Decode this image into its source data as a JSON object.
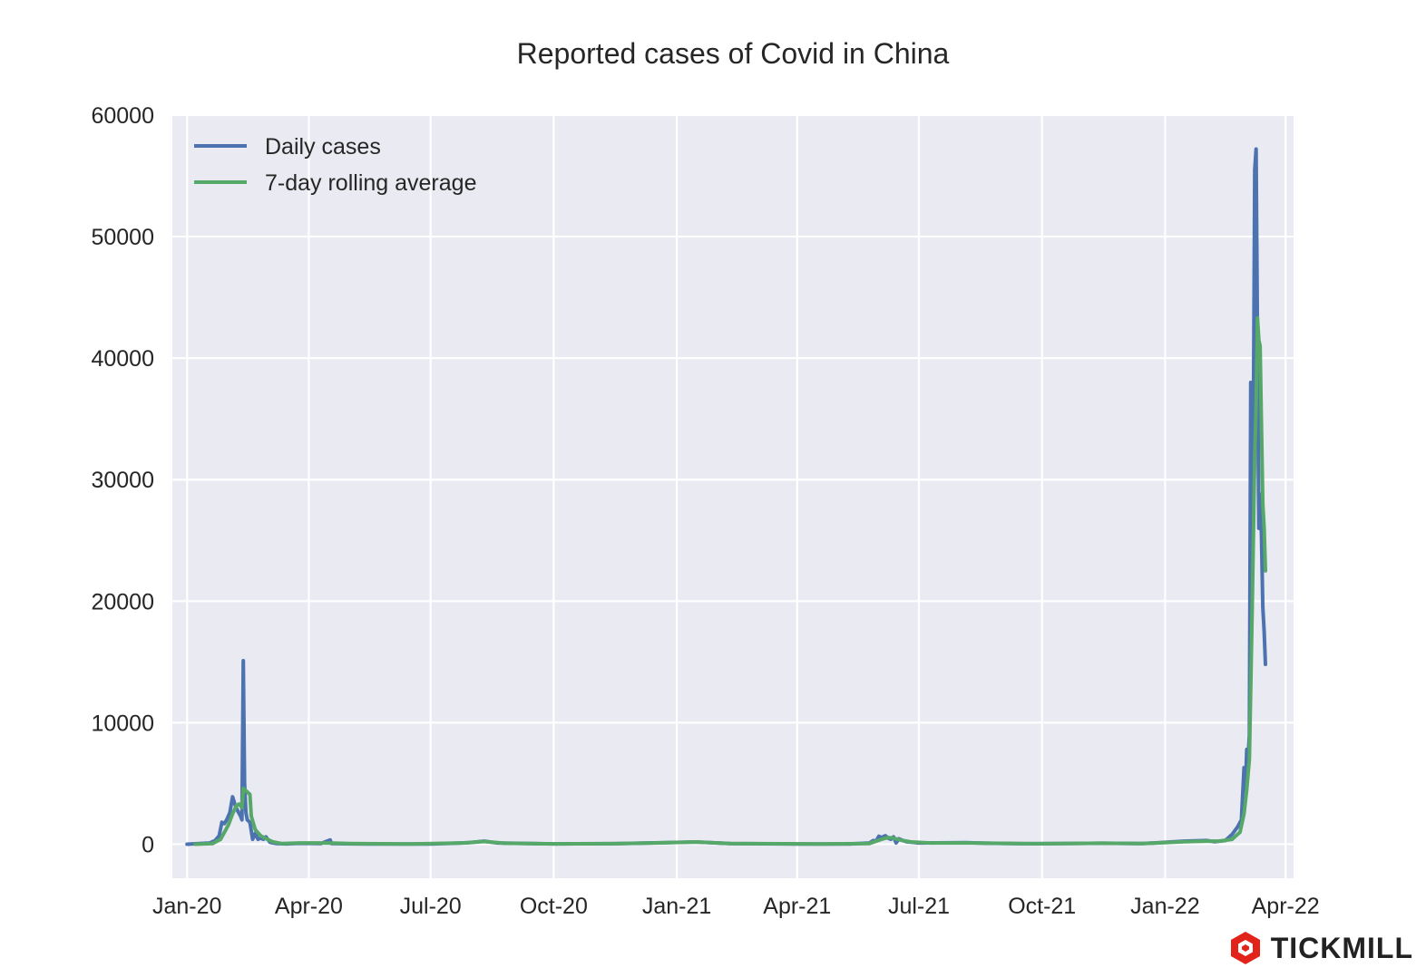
{
  "chart_data": {
    "type": "line",
    "title": "Reported cases of Covid in China",
    "xlabel": "",
    "ylabel": "",
    "x_range": [
      "2019-12-21",
      "2022-04-07"
    ],
    "ylim": [
      -2800,
      60000
    ],
    "grid": true,
    "legend_position": "top-left",
    "x_ticks": [
      {
        "date": "2020-01-01",
        "label": "Jan-20"
      },
      {
        "date": "2020-04-01",
        "label": "Apr-20"
      },
      {
        "date": "2020-07-01",
        "label": "Jul-20"
      },
      {
        "date": "2020-10-01",
        "label": "Oct-20"
      },
      {
        "date": "2021-01-01",
        "label": "Jan-21"
      },
      {
        "date": "2021-04-01",
        "label": "Apr-21"
      },
      {
        "date": "2021-07-01",
        "label": "Jul-21"
      },
      {
        "date": "2021-10-01",
        "label": "Oct-21"
      },
      {
        "date": "2022-01-01",
        "label": "Jan-22"
      },
      {
        "date": "2022-04-01",
        "label": "Apr-22"
      }
    ],
    "y_ticks": [
      0,
      10000,
      20000,
      30000,
      40000,
      50000,
      60000
    ],
    "series": [
      {
        "name": "Daily cases",
        "color": "#4c72b0",
        "points": [
          [
            "2020-01-01",
            0
          ],
          [
            "2020-01-10",
            50
          ],
          [
            "2020-01-18",
            100
          ],
          [
            "2020-01-22",
            300
          ],
          [
            "2020-01-25",
            700
          ],
          [
            "2020-01-27",
            1800
          ],
          [
            "2020-01-29",
            1700
          ],
          [
            "2020-01-31",
            2100
          ],
          [
            "2020-02-02",
            2600
          ],
          [
            "2020-02-04",
            3900
          ],
          [
            "2020-02-06",
            3200
          ],
          [
            "2020-02-08",
            2700
          ],
          [
            "2020-02-10",
            2300
          ],
          [
            "2020-02-11",
            2000
          ],
          [
            "2020-02-12",
            15100
          ],
          [
            "2020-02-13",
            5000
          ],
          [
            "2020-02-14",
            2600
          ],
          [
            "2020-02-15",
            2000
          ],
          [
            "2020-02-17",
            1800
          ],
          [
            "2020-02-19",
            400
          ],
          [
            "2020-02-21",
            900
          ],
          [
            "2020-02-23",
            400
          ],
          [
            "2020-02-25",
            500
          ],
          [
            "2020-02-27",
            400
          ],
          [
            "2020-02-29",
            600
          ],
          [
            "2020-03-03",
            150
          ],
          [
            "2020-03-08",
            50
          ],
          [
            "2020-03-15",
            30
          ],
          [
            "2020-03-25",
            70
          ],
          [
            "2020-04-10",
            60
          ],
          [
            "2020-04-17",
            350
          ],
          [
            "2020-04-18",
            50
          ],
          [
            "2020-05-15",
            10
          ],
          [
            "2020-07-01",
            20
          ],
          [
            "2020-07-30",
            120
          ],
          [
            "2020-08-10",
            250
          ],
          [
            "2020-08-20",
            100
          ],
          [
            "2020-10-01",
            30
          ],
          [
            "2020-11-15",
            40
          ],
          [
            "2020-12-15",
            110
          ],
          [
            "2021-01-15",
            180
          ],
          [
            "2021-02-10",
            60
          ],
          [
            "2021-04-01",
            20
          ],
          [
            "2021-05-10",
            20
          ],
          [
            "2021-05-25",
            100
          ],
          [
            "2021-05-28",
            300
          ],
          [
            "2021-05-30",
            250
          ],
          [
            "2021-06-01",
            650
          ],
          [
            "2021-06-03",
            550
          ],
          [
            "2021-06-06",
            700
          ],
          [
            "2021-06-08",
            500
          ],
          [
            "2021-06-10",
            400
          ],
          [
            "2021-06-12",
            600
          ],
          [
            "2021-06-14",
            100
          ],
          [
            "2021-06-16",
            450
          ],
          [
            "2021-06-18",
            350
          ],
          [
            "2021-06-22",
            200
          ],
          [
            "2021-07-01",
            100
          ],
          [
            "2021-08-05",
            120
          ],
          [
            "2021-08-20",
            80
          ],
          [
            "2021-09-15",
            40
          ],
          [
            "2021-10-15",
            60
          ],
          [
            "2021-11-15",
            80
          ],
          [
            "2021-12-15",
            50
          ],
          [
            "2022-01-01",
            150
          ],
          [
            "2022-01-15",
            250
          ],
          [
            "2022-02-01",
            300
          ],
          [
            "2022-02-07",
            200
          ],
          [
            "2022-02-15",
            300
          ],
          [
            "2022-02-20",
            800
          ],
          [
            "2022-02-24",
            1400
          ],
          [
            "2022-02-27",
            2000
          ],
          [
            "2022-03-01",
            6300
          ],
          [
            "2022-03-02",
            4500
          ],
          [
            "2022-03-03",
            7800
          ],
          [
            "2022-03-04",
            7200
          ],
          [
            "2022-03-05",
            9000
          ],
          [
            "2022-03-06",
            38000
          ],
          [
            "2022-03-07",
            24000
          ],
          [
            "2022-03-08",
            36000
          ],
          [
            "2022-03-09",
            55500
          ],
          [
            "2022-03-10",
            57200
          ],
          [
            "2022-03-11",
            42000
          ],
          [
            "2022-03-12",
            26000
          ],
          [
            "2022-03-13",
            28800
          ],
          [
            "2022-03-14",
            25500
          ],
          [
            "2022-03-15",
            19500
          ],
          [
            "2022-03-16",
            17500
          ],
          [
            "2022-03-17",
            14800
          ]
        ]
      },
      {
        "name": "7-day rolling average",
        "color": "#55a868",
        "points": [
          [
            "2020-01-07",
            0
          ],
          [
            "2020-01-20",
            50
          ],
          [
            "2020-01-26",
            400
          ],
          [
            "2020-01-29",
            1000
          ],
          [
            "2020-02-01",
            1600
          ],
          [
            "2020-02-04",
            2500
          ],
          [
            "2020-02-07",
            3200
          ],
          [
            "2020-02-09",
            3300
          ],
          [
            "2020-02-11",
            3000
          ],
          [
            "2020-02-12",
            4600
          ],
          [
            "2020-02-14",
            4400
          ],
          [
            "2020-02-17",
            4100
          ],
          [
            "2020-02-18",
            2300
          ],
          [
            "2020-02-21",
            1200
          ],
          [
            "2020-02-25",
            700
          ],
          [
            "2020-03-01",
            400
          ],
          [
            "2020-03-05",
            200
          ],
          [
            "2020-03-12",
            50
          ],
          [
            "2020-03-25",
            100
          ],
          [
            "2020-04-15",
            100
          ],
          [
            "2020-05-01",
            60
          ],
          [
            "2020-06-15",
            20
          ],
          [
            "2020-07-25",
            100
          ],
          [
            "2020-08-10",
            220
          ],
          [
            "2020-08-25",
            80
          ],
          [
            "2020-10-01",
            25
          ],
          [
            "2020-11-15",
            40
          ],
          [
            "2020-12-15",
            100
          ],
          [
            "2021-01-15",
            180
          ],
          [
            "2021-02-10",
            60
          ],
          [
            "2021-04-15",
            20
          ],
          [
            "2021-05-25",
            60
          ],
          [
            "2021-06-03",
            400
          ],
          [
            "2021-06-08",
            550
          ],
          [
            "2021-06-12",
            500
          ],
          [
            "2021-06-17",
            350
          ],
          [
            "2021-06-25",
            180
          ],
          [
            "2021-07-10",
            100
          ],
          [
            "2021-08-10",
            100
          ],
          [
            "2021-09-20",
            40
          ],
          [
            "2021-10-15",
            60
          ],
          [
            "2021-11-15",
            80
          ],
          [
            "2021-12-15",
            50
          ],
          [
            "2022-01-15",
            200
          ],
          [
            "2022-02-01",
            250
          ],
          [
            "2022-02-10",
            250
          ],
          [
            "2022-02-20",
            400
          ],
          [
            "2022-02-26",
            1000
          ],
          [
            "2022-03-01",
            2500
          ],
          [
            "2022-03-03",
            4500
          ],
          [
            "2022-03-05",
            7000
          ],
          [
            "2022-03-07",
            19000
          ],
          [
            "2022-03-09",
            32000
          ],
          [
            "2022-03-10",
            36000
          ],
          [
            "2022-03-11",
            43300
          ],
          [
            "2022-03-12",
            41500
          ],
          [
            "2022-03-13",
            41000
          ],
          [
            "2022-03-15",
            28000
          ],
          [
            "2022-03-16",
            26000
          ],
          [
            "2022-03-17",
            22500
          ]
        ]
      }
    ]
  },
  "brand": {
    "name": "TICKMILL",
    "color": "#e2231a"
  }
}
